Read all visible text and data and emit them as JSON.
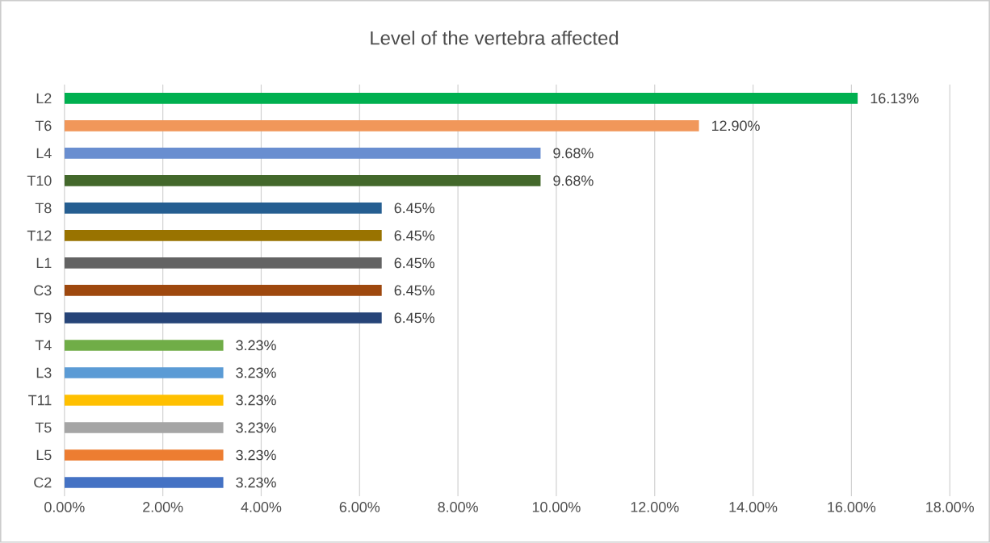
{
  "chart_data": {
    "type": "bar",
    "orientation": "horizontal",
    "title": "Level of the vertebra affected",
    "categories": [
      "L2",
      "T6",
      "L4",
      "T10",
      "T8",
      "T12",
      "L1",
      "C3",
      "T9",
      "T4",
      "L3",
      "T11",
      "T5",
      "L5",
      "C2"
    ],
    "values": [
      16.13,
      12.9,
      9.68,
      9.68,
      6.45,
      6.45,
      6.45,
      6.45,
      6.45,
      3.23,
      3.23,
      3.23,
      3.23,
      3.23,
      3.23
    ],
    "value_labels": [
      "16.13%",
      "12.90%",
      "9.68%",
      "9.68%",
      "6.45%",
      "6.45%",
      "6.45%",
      "6.45%",
      "6.45%",
      "3.23%",
      "3.23%",
      "3.23%",
      "3.23%",
      "3.23%",
      "3.23%"
    ],
    "colors": [
      "#00b050",
      "#f1975a",
      "#698ed0",
      "#43682b",
      "#255e91",
      "#997300",
      "#636363",
      "#9e480e",
      "#264478",
      "#70ad47",
      "#5b9bd5",
      "#ffc000",
      "#a5a5a5",
      "#ed7d31",
      "#4472c4"
    ],
    "xlim": [
      0,
      18
    ],
    "xticks": [
      {
        "value": 0,
        "label": "0.00%"
      },
      {
        "value": 2,
        "label": "2.00%"
      },
      {
        "value": 4,
        "label": "4.00%"
      },
      {
        "value": 6,
        "label": "6.00%"
      },
      {
        "value": 8,
        "label": "8.00%"
      },
      {
        "value": 10,
        "label": "10.00%"
      },
      {
        "value": 12,
        "label": "12.00%"
      },
      {
        "value": 14,
        "label": "14.00%"
      },
      {
        "value": 16,
        "label": "16.00%"
      },
      {
        "value": 18,
        "label": "18.00%"
      }
    ],
    "grid": "x"
  }
}
